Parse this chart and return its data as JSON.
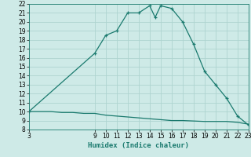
{
  "title": "",
  "xlabel": "Humidex (Indice chaleur)",
  "bg_color": "#ceeae7",
  "grid_color": "#aed4d0",
  "line_color": "#1a7a6e",
  "x_main": [
    3,
    9,
    10,
    11,
    12,
    13,
    14,
    14.5,
    15,
    16,
    17,
    18,
    19,
    20,
    21,
    22,
    23
  ],
  "y_main": [
    10,
    16.5,
    18.5,
    19,
    21,
    21,
    21.8,
    20.5,
    21.8,
    21.5,
    20,
    17.5,
    14.5,
    13,
    11.5,
    9.5,
    8.5
  ],
  "x_flat": [
    3,
    4,
    5,
    6,
    7,
    8,
    9,
    10,
    11,
    12,
    13,
    14,
    15,
    16,
    17,
    18,
    19,
    20,
    21,
    22,
    23
  ],
  "y_flat": [
    10,
    10,
    10,
    9.9,
    9.9,
    9.8,
    9.8,
    9.6,
    9.5,
    9.4,
    9.3,
    9.2,
    9.1,
    9.0,
    9.0,
    8.95,
    8.9,
    8.9,
    8.9,
    8.8,
    8.6
  ],
  "xlim": [
    3,
    23
  ],
  "ylim": [
    8,
    22
  ],
  "xticks": [
    3,
    9,
    10,
    11,
    12,
    13,
    14,
    15,
    16,
    17,
    18,
    19,
    20,
    21,
    22,
    23
  ],
  "yticks": [
    8,
    9,
    10,
    11,
    12,
    13,
    14,
    15,
    16,
    17,
    18,
    19,
    20,
    21,
    22
  ],
  "tick_fontsize": 5.5,
  "xlabel_fontsize": 6.5
}
